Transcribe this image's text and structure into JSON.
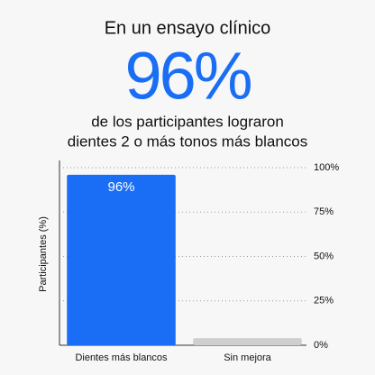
{
  "chart_data": {
    "type": "bar",
    "headline": {
      "title": "En un ensayo clínico",
      "big": "96%",
      "subtitle": [
        "de los participantes lograron",
        "dientes 2 o más tonos más blancos"
      ]
    },
    "y_label": "Participantes (%)",
    "categories": [
      "Dientes más blancos",
      "Sin mejora"
    ],
    "values": [
      96,
      4
    ],
    "value_labels": [
      "96%",
      null
    ],
    "colors": [
      "#1a6ef5",
      "#cfcfcf"
    ],
    "ylim": [
      0,
      100
    ],
    "yticks": [
      {
        "value": 0,
        "label": "0%"
      },
      {
        "value": 25,
        "label": "25%"
      },
      {
        "value": 50,
        "label": "50%"
      },
      {
        "value": 75,
        "label": "75%"
      },
      {
        "value": 100,
        "label": "100%"
      }
    ],
    "grid": true
  }
}
